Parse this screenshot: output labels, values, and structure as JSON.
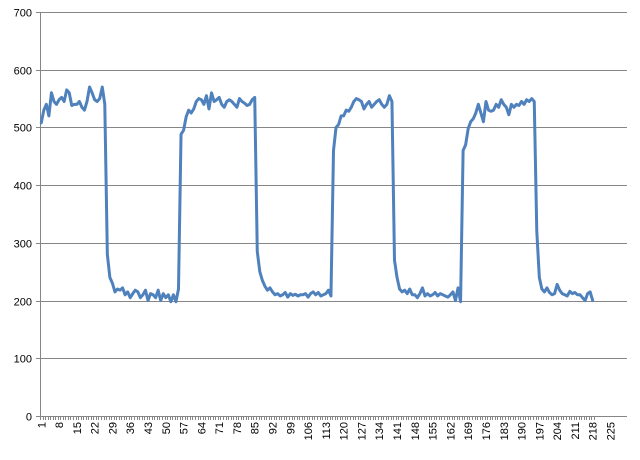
{
  "chart_data": {
    "type": "line",
    "title": "",
    "xlabel": "",
    "ylabel": "",
    "ylim": [
      0,
      700
    ],
    "yticks": [
      0,
      100,
      200,
      300,
      400,
      500,
      600,
      700
    ],
    "x_tick_labels": [
      "1",
      "8",
      "15",
      "22",
      "29",
      "36",
      "43",
      "50",
      "57",
      "64",
      "71",
      "78",
      "85",
      "92",
      "99",
      "106",
      "113",
      "120",
      "127",
      "134",
      "141",
      "148",
      "155",
      "162",
      "169",
      "176",
      "183",
      "190",
      "197",
      "204",
      "211",
      "218",
      "225"
    ],
    "x_range": [
      1,
      231
    ],
    "grid": "horizontal",
    "legend": "none",
    "series": [
      {
        "color": "#4f81bd",
        "values": [
          508,
          530,
          540,
          520,
          560,
          545,
          540,
          548,
          552,
          545,
          565,
          560,
          538,
          540,
          540,
          545,
          535,
          530,
          545,
          570,
          560,
          548,
          545,
          550,
          570,
          540,
          280,
          240,
          230,
          215,
          220,
          218,
          222,
          210,
          215,
          205,
          212,
          218,
          215,
          205,
          210,
          218,
          200,
          212,
          210,
          205,
          218,
          200,
          212,
          205,
          210,
          198,
          210,
          198,
          220,
          488,
          495,
          518,
          530,
          525,
          532,
          545,
          550,
          548,
          540,
          555,
          532,
          560,
          545,
          548,
          552,
          540,
          535,
          545,
          548,
          545,
          540,
          535,
          550,
          545,
          542,
          538,
          540,
          548,
          552,
          285,
          250,
          235,
          225,
          218,
          222,
          215,
          210,
          212,
          208,
          210,
          214,
          206,
          212,
          209,
          211,
          208,
          210,
          210,
          212,
          206,
          212,
          215,
          210,
          214,
          208,
          210,
          212,
          218,
          208,
          460,
          500,
          505,
          520,
          520,
          530,
          528,
          535,
          545,
          550,
          548,
          545,
          532,
          540,
          545,
          535,
          540,
          545,
          548,
          540,
          535,
          540,
          555,
          545,
          270,
          240,
          220,
          215,
          218,
          212,
          220,
          210,
          210,
          205,
          212,
          222,
          208,
          212,
          208,
          210,
          214,
          208,
          212,
          210,
          208,
          206,
          210,
          215,
          200,
          222,
          198,
          460,
          470,
          498,
          510,
          515,
          525,
          540,
          525,
          510,
          545,
          530,
          528,
          530,
          540,
          535,
          548,
          540,
          535,
          522,
          540,
          535,
          540,
          538,
          545,
          540,
          548,
          545,
          550,
          545,
          320,
          240,
          220,
          215,
          222,
          214,
          210,
          212,
          228,
          218,
          212,
          210,
          208,
          216,
          212,
          214,
          210,
          210,
          205,
          200,
          212,
          215,
          200
        ]
      }
    ]
  }
}
